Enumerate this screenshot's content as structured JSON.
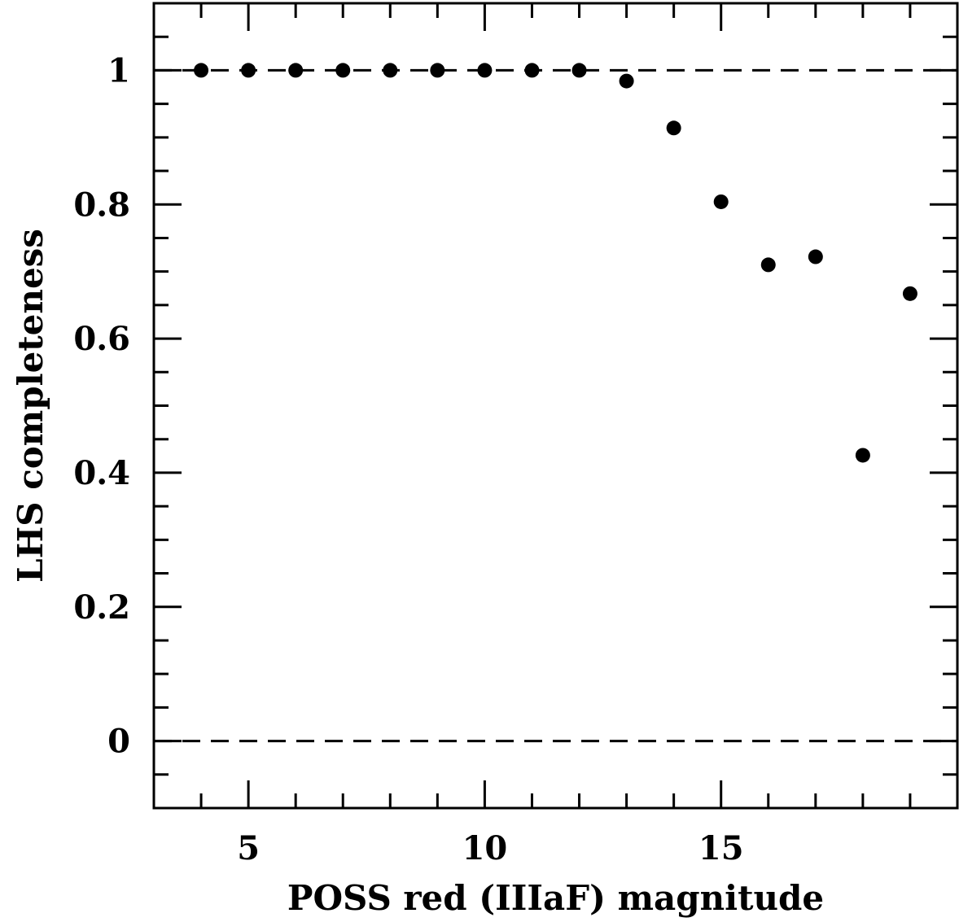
{
  "chart_data": {
    "type": "scatter",
    "title": "",
    "xlabel": "POSS red (IIIaF) magnitude",
    "ylabel": "LHS completeness",
    "xlim": [
      3,
      20
    ],
    "ylim": [
      -0.1,
      1.1
    ],
    "x_major_ticks": [
      5,
      10,
      15
    ],
    "x_minor_ticks": [
      4,
      5,
      6,
      7,
      8,
      9,
      10,
      11,
      12,
      13,
      14,
      15,
      16,
      17,
      18,
      19
    ],
    "x_tick_labels": [
      "5",
      "10",
      "15"
    ],
    "y_major_ticks": [
      0,
      0.2,
      0.4,
      0.6,
      0.8,
      1
    ],
    "y_minor_ticks": [
      -0.05,
      0,
      0.05,
      0.1,
      0.15,
      0.2,
      0.25,
      0.3,
      0.35,
      0.4,
      0.45,
      0.5,
      0.55,
      0.6,
      0.65,
      0.7,
      0.75,
      0.8,
      0.85,
      0.9,
      0.95,
      1,
      1.05
    ],
    "y_tick_labels": [
      "0",
      "0.2",
      "0.4",
      "0.6",
      "0.8",
      "1"
    ],
    "reference_lines": [
      {
        "y": 1,
        "style": "dashed"
      },
      {
        "y": 0,
        "style": "dashed"
      }
    ],
    "series": [
      {
        "x": [
          4,
          5,
          6,
          7,
          8,
          9,
          10,
          11,
          12,
          13,
          14,
          15,
          16,
          17,
          18,
          19
        ],
        "y": [
          1.0,
          1.0,
          1.0,
          1.0,
          1.0,
          1.0,
          1.0,
          1.0,
          1.0,
          0.984,
          0.914,
          0.804,
          0.71,
          0.722,
          0.426,
          0.667
        ]
      }
    ],
    "grid": false,
    "marker_color": "#000000"
  }
}
